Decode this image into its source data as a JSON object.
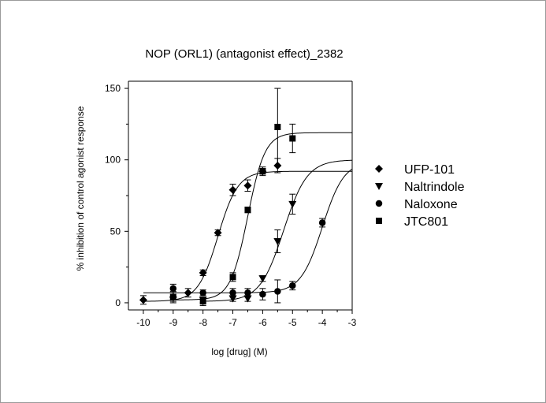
{
  "chart_data": {
    "type": "scatter",
    "title": "NOP (ORL1) (antagonist effect)_2382",
    "xlabel": "log [drug] (M)",
    "ylabel": "% inhibition of control agonist response",
    "xlim": [
      -10.5,
      -3
    ],
    "ylim": [
      -5,
      155
    ],
    "xticks": [
      -10,
      -9,
      -8,
      -7,
      -6,
      -5,
      -4,
      -3
    ],
    "yticks": [
      0,
      50,
      100,
      150
    ],
    "grid": false,
    "legend_position": "right",
    "series": [
      {
        "name": "UFP-101",
        "marker": "diamond",
        "points": [
          {
            "x": -10.0,
            "y": 2,
            "err": 3
          },
          {
            "x": -9.0,
            "y": 4,
            "err": 4
          },
          {
            "x": -8.5,
            "y": 7,
            "err": 3
          },
          {
            "x": -8.0,
            "y": 21,
            "err": 2
          },
          {
            "x": -7.5,
            "y": 49,
            "err": 2
          },
          {
            "x": -7.0,
            "y": 79,
            "err": 4
          },
          {
            "x": -6.5,
            "y": 82,
            "err": 4
          },
          {
            "x": -6.0,
            "y": 92,
            "err": 3
          },
          {
            "x": -5.5,
            "y": 96,
            "err": 5
          }
        ],
        "curve": {
          "bottom": 1,
          "top": 92,
          "logEC50": -7.5,
          "hill": 1.3,
          "x_from": -10,
          "x_to": -3
        }
      },
      {
        "name": "Naltrindole",
        "marker": "triangle-down",
        "points": [
          {
            "x": -8.0,
            "y": 2,
            "err": 2
          },
          {
            "x": -7.0,
            "y": 3,
            "err": 2
          },
          {
            "x": -6.5,
            "y": 3,
            "err": 2
          },
          {
            "x": -6.0,
            "y": 17,
            "err": 2
          },
          {
            "x": -5.5,
            "y": 43,
            "err": 8
          },
          {
            "x": -5.0,
            "y": 69,
            "err": 7
          }
        ],
        "curve": {
          "bottom": 1,
          "top": 100,
          "logEC50": -5.3,
          "hill": 1.1,
          "x_from": -8,
          "x_to": -3
        }
      },
      {
        "name": "Naloxone",
        "marker": "circle",
        "points": [
          {
            "x": -9.0,
            "y": 10,
            "err": 3
          },
          {
            "x": -8.0,
            "y": 7,
            "err": 2
          },
          {
            "x": -7.0,
            "y": 7,
            "err": 3
          },
          {
            "x": -6.5,
            "y": 7,
            "err": 3
          },
          {
            "x": -6.0,
            "y": 6,
            "err": 4
          },
          {
            "x": -5.5,
            "y": 8,
            "err": 8
          },
          {
            "x": -5.0,
            "y": 12,
            "err": 3
          },
          {
            "x": -4.0,
            "y": 56,
            "err": 3
          }
        ],
        "curve": {
          "bottom": 7,
          "top": 99,
          "logEC50": -4.0,
          "hill": 1.2,
          "x_from": -10,
          "x_to": -3
        }
      },
      {
        "name": "JTC801",
        "marker": "square",
        "points": [
          {
            "x": -9.0,
            "y": 4,
            "err": 3
          },
          {
            "x": -8.0,
            "y": 1,
            "err": 3
          },
          {
            "x": -7.0,
            "y": 18,
            "err": 3
          },
          {
            "x": -6.5,
            "y": 65,
            "err": 2
          },
          {
            "x": -6.0,
            "y": 92,
            "err": 2
          },
          {
            "x": -5.5,
            "y": 123,
            "err": 27
          },
          {
            "x": -5.0,
            "y": 115,
            "err": 10
          }
        ],
        "curve": {
          "bottom": 2,
          "top": 119,
          "logEC50": -6.5,
          "hill": 1.5,
          "x_from": -9,
          "x_to": -3
        }
      }
    ]
  }
}
